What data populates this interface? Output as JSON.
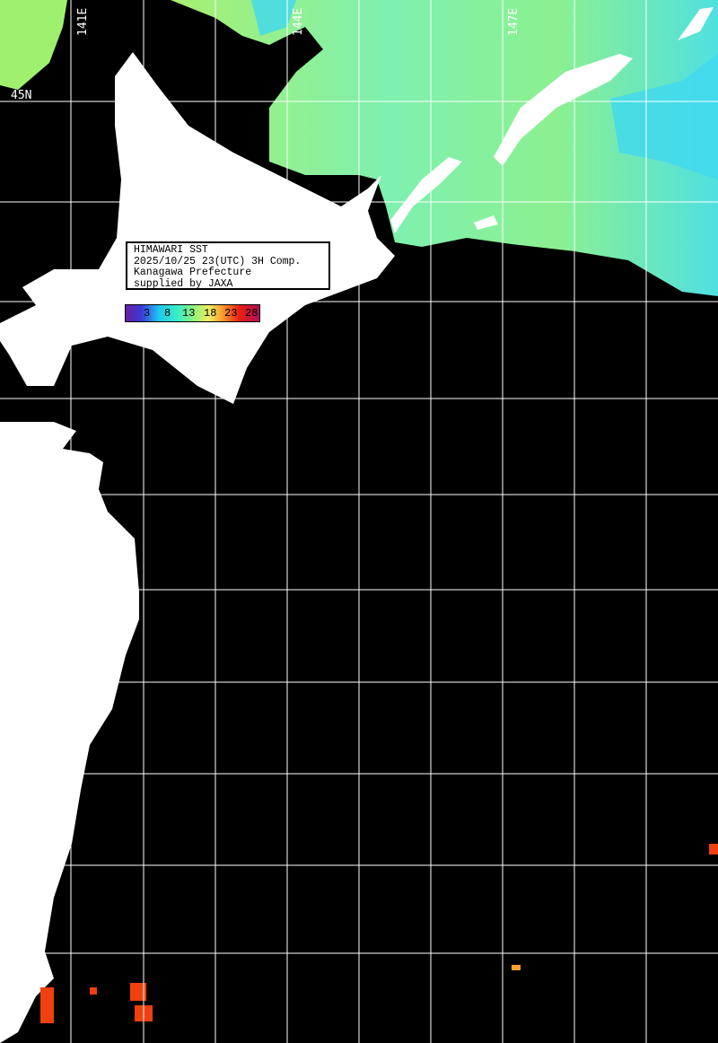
{
  "info": {
    "title": "HIMAWARI SST",
    "datetime": "2025/10/25 23(UTC) 3H Comp.",
    "prefecture": "Kanagawa Prefecture",
    "credit": "supplied by JAXA"
  },
  "colorbar": {
    "ticks": [
      "3",
      "8",
      "13",
      "18",
      "23",
      "28"
    ],
    "colors": [
      "#6a1fa0",
      "#3a3ad8",
      "#1ec8f0",
      "#3ef0c0",
      "#9af07a",
      "#f0f060",
      "#f8a030",
      "#e82010",
      "#b0105a"
    ]
  },
  "grid_labels": {
    "lon": [
      "141E",
      "144E",
      "147E"
    ],
    "lat": [
      "45N"
    ]
  },
  "colors": {
    "land": "#ffffff",
    "no_data": "#000000",
    "sea_cool": "#7ef0a0",
    "sea_cold": "#40d8f0",
    "sea_warm": "#f04010",
    "grid": "#ffffff"
  }
}
